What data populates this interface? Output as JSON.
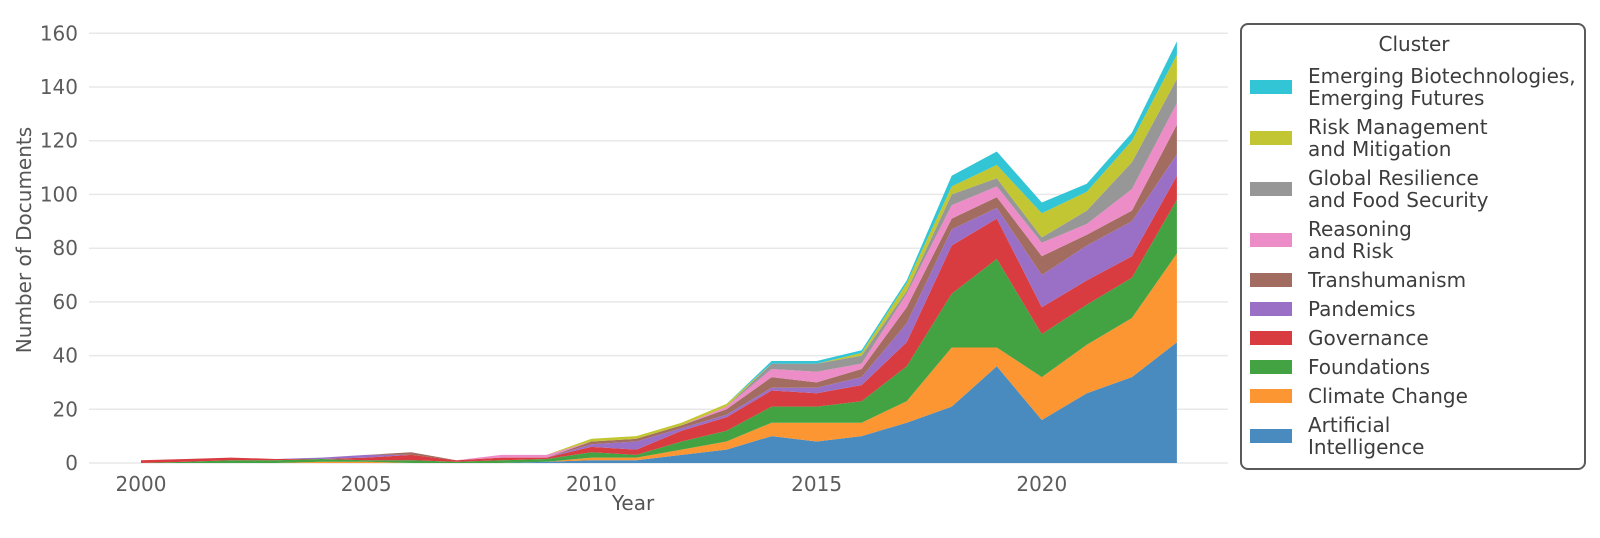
{
  "y_axis": {
    "label": "Number of Documents",
    "ticks": [
      0,
      20,
      40,
      60,
      80,
      100,
      120,
      140,
      160
    ]
  },
  "x_axis": {
    "label": "Year",
    "ticks": [
      2000,
      2005,
      2010,
      2015,
      2020
    ]
  },
  "legend": {
    "title": "Cluster",
    "items": [
      {
        "label": "Emerging Biotechnologies,\nEmerging Futures",
        "color": "#31c5d6"
      },
      {
        "label": "Risk Management\nand Mitigation",
        "color": "#c2c633"
      },
      {
        "label": "Global Resilience\nand Food Security",
        "color": "#979797"
      },
      {
        "label": "Reasoning\nand Risk",
        "color": "#ec8dc7"
      },
      {
        "label": "Transhumanism",
        "color": "#a26c60"
      },
      {
        "label": "Pandemics",
        "color": "#9a70c7"
      },
      {
        "label": "Governance",
        "color": "#d83c40"
      },
      {
        "label": "Foundations",
        "color": "#43a343"
      },
      {
        "label": "Climate Change",
        "color": "#fb9632"
      },
      {
        "label": "Artificial\nIntelligence",
        "color": "#4a8bbf"
      }
    ]
  },
  "chart_data": {
    "type": "area",
    "stacked": true,
    "title": "",
    "xlabel": "Year",
    "ylabel": "Number of Documents",
    "xlim": [
      2000,
      2023
    ],
    "ylim": [
      0,
      160
    ],
    "grid": true,
    "grid_color": "#e8e8e8",
    "legend_position": "right",
    "x": [
      2000,
      2001,
      2002,
      2003,
      2004,
      2005,
      2006,
      2007,
      2008,
      2009,
      2010,
      2011,
      2012,
      2013,
      2014,
      2015,
      2016,
      2017,
      2018,
      2019,
      2020,
      2021,
      2022,
      2023
    ],
    "series": [
      {
        "name": "Artificial Intelligence",
        "color": "#4a8bbf",
        "values": [
          0,
          0,
          0,
          0,
          0,
          0,
          0,
          0,
          0,
          0.5,
          1,
          1,
          3,
          5,
          10,
          8,
          10,
          15,
          21,
          36,
          16,
          26,
          32,
          45
        ]
      },
      {
        "name": "Climate Change",
        "color": "#fb9632",
        "values": [
          0,
          0,
          0,
          0,
          0.5,
          0.5,
          0,
          0,
          0,
          0,
          1,
          1,
          2,
          3,
          5,
          7,
          5,
          8,
          22,
          7,
          16,
          18,
          22,
          33
        ]
      },
      {
        "name": "Foundations",
        "color": "#43a343",
        "values": [
          0,
          0.5,
          1,
          1,
          1,
          0.5,
          1,
          0.5,
          1,
          1,
          2,
          1,
          3,
          4,
          6,
          6,
          8,
          13,
          20,
          33,
          16,
          15,
          15,
          20
        ]
      },
      {
        "name": "Governance",
        "color": "#d83c40",
        "values": [
          1,
          1,
          1,
          0.5,
          0,
          1,
          2,
          0.5,
          1,
          0.5,
          2,
          2,
          4,
          5,
          6,
          5,
          6,
          9,
          18,
          15,
          10,
          9,
          8,
          9
        ]
      },
      {
        "name": "Pandemics",
        "color": "#9a70c7",
        "values": [
          0,
          0,
          0,
          0,
          0.5,
          1,
          0,
          0,
          0,
          0,
          1,
          3,
          1,
          1,
          1,
          2,
          3,
          7,
          6,
          4,
          12,
          13,
          13,
          8
        ]
      },
      {
        "name": "Transhumanism",
        "color": "#a26c60",
        "values": [
          0,
          0,
          0,
          0,
          0,
          0,
          1,
          0,
          0,
          0,
          1,
          1,
          1,
          2,
          4,
          2,
          3,
          6,
          4,
          4,
          7,
          4,
          4,
          11
        ]
      },
      {
        "name": "Reasoning and Risk",
        "color": "#ec8dc7",
        "values": [
          0,
          0,
          0,
          0,
          0,
          0,
          0,
          0,
          1,
          1,
          0,
          0,
          0,
          1,
          3,
          4,
          2,
          5,
          5,
          4,
          5,
          4,
          8,
          8
        ]
      },
      {
        "name": "Global Resilience and Food Security",
        "color": "#979797",
        "values": [
          0,
          0,
          0,
          0,
          0,
          0,
          0,
          0,
          0,
          0,
          0,
          0,
          0,
          0,
          2,
          3,
          3,
          1,
          4,
          3,
          2,
          5,
          10,
          9
        ]
      },
      {
        "name": "Risk Management and Mitigation",
        "color": "#c2c633",
        "values": [
          0,
          0,
          0,
          0,
          0,
          0,
          0,
          0,
          0,
          0,
          1,
          1,
          1,
          1,
          0,
          0,
          1,
          3,
          3,
          5,
          9,
          7,
          8,
          9
        ]
      },
      {
        "name": "Emerging Biotechnologies, Emerging Futures",
        "color": "#31c5d6",
        "values": [
          0,
          0,
          0,
          0,
          0,
          0,
          0,
          0,
          0,
          0,
          0,
          0,
          0,
          0,
          1,
          1,
          1,
          1,
          4,
          5,
          4,
          3,
          3,
          5
        ]
      }
    ]
  }
}
